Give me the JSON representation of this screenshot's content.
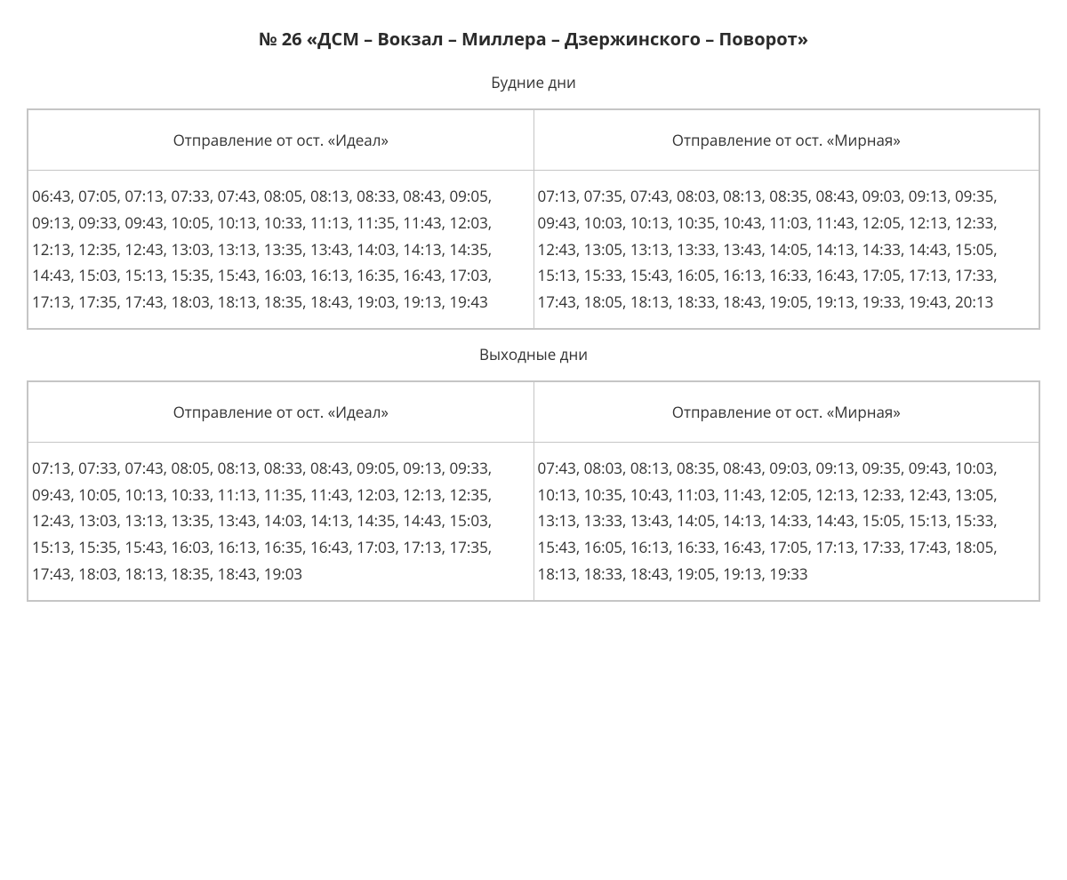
{
  "title": "№ 26 «ДСМ – Вокзал – Миллера – Дзержинского – Поворот»",
  "colors": {
    "text": "#333333",
    "title": "#2b2b2b",
    "border": "#c5c5c5",
    "background": "#ffffff"
  },
  "typography": {
    "title_fontsize_pt": 15,
    "title_fontweight": 700,
    "section_label_fontsize_pt": 13,
    "header_fontsize_pt": 13,
    "cell_fontsize_pt": 13,
    "line_height": 1.75
  },
  "sections": [
    {
      "label": "Будние дни",
      "columns": [
        {
          "header": "Отправление от ост. «Идеал»",
          "times": [
            "06:43",
            "07:05",
            "07:13",
            "07:33",
            "07:43",
            "08:05",
            "08:13",
            "08:33",
            "08:43",
            "09:05",
            "09:13",
            "09:33",
            "09:43",
            "10:05",
            "10:13",
            "10:33",
            "11:13",
            "11:35",
            "11:43",
            "12:03",
            "12:13",
            "12:35",
            "12:43",
            "13:03",
            "13:13",
            "13:35",
            "13:43",
            "14:03",
            "14:13",
            "14:35",
            "14:43",
            "15:03",
            "15:13",
            "15:35",
            "15:43",
            "16:03",
            "16:13",
            "16:35",
            "16:43",
            "17:03",
            "17:13",
            "17:35",
            "17:43",
            "18:03",
            "18:13",
            "18:35",
            "18:43",
            "19:03",
            "19:13",
            "19:43"
          ]
        },
        {
          "header": "Отправление от ост. «Мирная»",
          "times": [
            "07:13",
            "07:35",
            "07:43",
            "08:03",
            "08:13",
            "08:35",
            "08:43",
            "09:03",
            "09:13",
            "09:35",
            "09:43",
            "10:03",
            "10:13",
            "10:35",
            "10:43",
            "11:03",
            "11:43",
            "12:05",
            "12:13",
            "12:33",
            "12:43",
            "13:05",
            "13:13",
            "13:33",
            "13:43",
            "14:05",
            "14:13",
            "14:33",
            "14:43",
            "15:05",
            "15:13",
            "15:33",
            "15:43",
            "16:05",
            "16:13",
            "16:33",
            "16:43",
            "17:05",
            "17:13",
            "17:33",
            "17:43",
            "18:05",
            "18:13",
            "18:33",
            "18:43",
            "19:05",
            "19:13",
            "19:33",
            "19:43",
            "20:13"
          ]
        }
      ]
    },
    {
      "label": "Выходные дни",
      "columns": [
        {
          "header": "Отправление от ост. «Идеал»",
          "times": [
            "07:13",
            "07:33",
            "07:43",
            "08:05",
            "08:13",
            "08:33",
            "08:43",
            "09:05",
            "09:13",
            "09:33",
            "09:43",
            "10:05",
            "10:13",
            "10:33",
            "11:13",
            "11:35",
            "11:43",
            "12:03",
            "12:13",
            "12:35",
            "12:43",
            "13:03",
            "13:13",
            "13:35",
            "13:43",
            "14:03",
            "14:13",
            "14:35",
            "14:43",
            "15:03",
            "15:13",
            "15:35",
            "15:43",
            "16:03",
            "16:13",
            "16:35",
            "16:43",
            "17:03",
            "17:13",
            "17:35",
            "17:43",
            "18:03",
            "18:13",
            "18:35",
            "18:43",
            "19:03"
          ]
        },
        {
          "header": "Отправление от ост. «Мирная»",
          "times": [
            "07:43",
            "08:03",
            "08:13",
            "08:35",
            "08:43",
            "09:03",
            "09:13",
            "09:35",
            "09:43",
            "10:03",
            "10:13",
            "10:35",
            "10:43",
            "11:03",
            "11:43",
            "12:05",
            "12:13",
            "12:33",
            "12:43",
            "13:05",
            "13:13",
            "13:33",
            "13:43",
            "14:05",
            "14:13",
            "14:33",
            "14:43",
            "15:05",
            "15:13",
            "15:33",
            "15:43",
            "16:05",
            "16:13",
            "16:33",
            "16:43",
            "17:05",
            "17:13",
            "17:33",
            "17:43",
            "18:05",
            "18:13",
            "18:33",
            "18:43",
            "19:05",
            "19:13",
            "19:33"
          ]
        }
      ]
    }
  ]
}
